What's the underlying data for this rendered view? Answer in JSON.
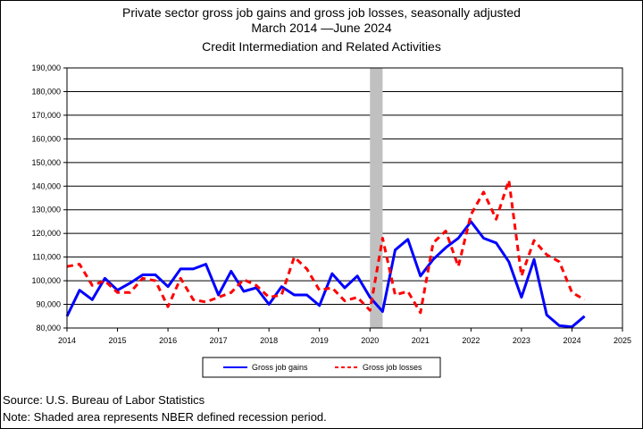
{
  "title_line1": "Private sector gross job gains and gross job losses, seasonally adjusted",
  "title_line2": "March 2014 —June 2024",
  "title_line3": "Credit Intermediation and Related Activities",
  "source": "Source: U.S. Bureau of Labor Statistics",
  "note": "Note: Shaded area represents NBER defined recession period.",
  "chart_data": {
    "type": "line",
    "grid": "horizontal",
    "legend_position": "bottom-center",
    "x_range": [
      2014,
      2025
    ],
    "y_range": [
      80000,
      190000
    ],
    "x_ticks": [
      "2014",
      "2015",
      "2016",
      "2017",
      "2018",
      "2019",
      "2020",
      "2021",
      "2022",
      "2023",
      "2024",
      "2025"
    ],
    "y_ticks": [
      "80,000",
      "90,000",
      "100,000",
      "110,000",
      "120,000",
      "130,000",
      "140,000",
      "150,000",
      "160,000",
      "170,000",
      "180,000",
      "190,000"
    ],
    "recession": {
      "start": 2020.0,
      "end": 2020.25
    },
    "colors": {
      "gains": "#0000ff",
      "losses": "#ff0000",
      "recession": "#c0c0c0"
    },
    "x": [
      2014.0,
      2014.25,
      2014.5,
      2014.75,
      2015.0,
      2015.25,
      2015.5,
      2015.75,
      2016.0,
      2016.25,
      2016.5,
      2016.75,
      2017.0,
      2017.25,
      2017.5,
      2017.75,
      2018.0,
      2018.25,
      2018.5,
      2018.75,
      2019.0,
      2019.25,
      2019.5,
      2019.75,
      2020.0,
      2020.25,
      2020.5,
      2020.75,
      2021.0,
      2021.25,
      2021.5,
      2021.75,
      2022.0,
      2022.25,
      2022.5,
      2022.75,
      2023.0,
      2023.25,
      2023.5,
      2023.75,
      2024.0,
      2024.25
    ],
    "series": [
      {
        "name": "Gross job gains",
        "style": "solid",
        "values": [
          85000,
          96000,
          92000,
          101000,
          96000,
          99000,
          102500,
          102500,
          97500,
          105000,
          105000,
          107000,
          94000,
          104000,
          95500,
          97000,
          90000,
          97500,
          94000,
          94000,
          89500,
          103000,
          97000,
          102000,
          93000,
          87000,
          113000,
          117500,
          102000,
          109000,
          114000,
          118000,
          125000,
          118000,
          116000,
          108000,
          93000,
          109000,
          85500,
          81000,
          80500,
          85000
        ]
      },
      {
        "name": "Gross job losses",
        "style": "dashed",
        "values": [
          106000,
          107000,
          98000,
          100000,
          95000,
          95000,
          101000,
          100000,
          89000,
          101000,
          92000,
          91000,
          93000,
          95000,
          100500,
          98000,
          93000,
          94000,
          110000,
          105000,
          96000,
          97000,
          91500,
          93000,
          87500,
          118000,
          94000,
          95500,
          86500,
          116000,
          121000,
          106000,
          128000,
          137500,
          126000,
          142500,
          102000,
          117000,
          111000,
          108000,
          95000,
          92000
        ]
      }
    ]
  }
}
